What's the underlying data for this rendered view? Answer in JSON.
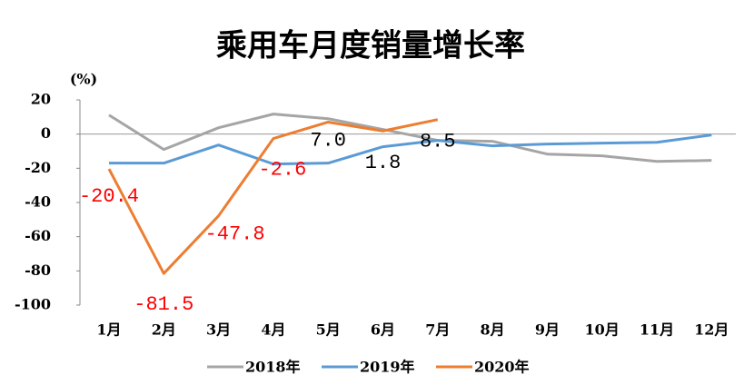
{
  "chart_data": {
    "type": "line",
    "title": "乘用车月度销量增长率",
    "y_label": "(%)",
    "categories": [
      "1月",
      "2月",
      "3月",
      "4月",
      "5月",
      "6月",
      "7月",
      "8月",
      "9月",
      "10月",
      "11月",
      "12月"
    ],
    "ylim": [
      -100,
      20
    ],
    "yticks": [
      20,
      0,
      -20,
      -40,
      -60,
      -80,
      -100
    ],
    "series": [
      {
        "name": "2018年",
        "color": "#a5a5a5",
        "values": [
          11.1,
          -9,
          3.7,
          11.7,
          9,
          2.7,
          -3.7,
          -4.2,
          -11.7,
          -12.7,
          -16,
          -15.4
        ]
      },
      {
        "name": "2019年",
        "color": "#5b9bd5",
        "values": [
          -17,
          -17,
          -6.4,
          -17.5,
          -17,
          -7.4,
          -3.7,
          -6.9,
          -5.8,
          -5.3,
          -4.8,
          -0.5
        ]
      },
      {
        "name": "2020年",
        "color": "#ed7d31",
        "values": [
          -20.4,
          -81.5,
          -47.8,
          -2.6,
          7,
          1.8,
          8.5,
          null,
          null,
          null,
          null,
          null
        ],
        "value_labels": [
          "-20.4",
          "-81.5",
          "-47.8",
          "-2.6",
          "7.0",
          "1.8",
          "8.5",
          null,
          null,
          null,
          null,
          null
        ]
      }
    ]
  }
}
